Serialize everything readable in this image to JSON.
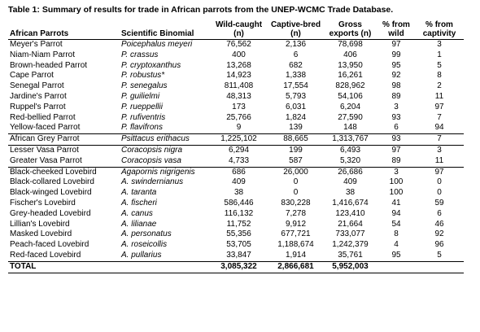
{
  "caption": "Table 1: Summary of results for trade in African parrots from the UNEP-WCMC Trade Database.",
  "headers": {
    "common": "African Parrots",
    "sci": "Scientific Binomial",
    "wild": "Wild-caught (n)",
    "captive": "Captive-bred (n)",
    "gross": "Gross exports (n)",
    "pct_wild": "% from wild",
    "pct_captive": "% from captivity"
  },
  "rows": [
    {
      "common": "Meyer's Parrot",
      "sci": "Poicephalus meyeri",
      "wild": "76,562",
      "captive": "2,136",
      "gross": "78,698",
      "pct_wild": "97",
      "pct_captive": "3"
    },
    {
      "common": "Niam-Niam Parrot",
      "sci": "P. crassus",
      "wild": "400",
      "captive": "6",
      "gross": "406",
      "pct_wild": "99",
      "pct_captive": "1"
    },
    {
      "common": "Brown-headed Parrot",
      "sci": "P. cryptoxanthus",
      "wild": "13,268",
      "captive": "682",
      "gross": "13,950",
      "pct_wild": "95",
      "pct_captive": "5"
    },
    {
      "common": "Cape Parrot",
      "sci": "P. robustus*",
      "wild": "14,923",
      "captive": "1,338",
      "gross": "16,261",
      "pct_wild": "92",
      "pct_captive": "8"
    },
    {
      "common": "Senegal Parrot",
      "sci": "P. senegalus",
      "wild": "811,408",
      "captive": "17,554",
      "gross": "828,962",
      "pct_wild": "98",
      "pct_captive": "2"
    },
    {
      "common": "Jardine's Parrot",
      "sci": "P. guilielmi",
      "wild": "48,313",
      "captive": "5,793",
      "gross": "54,106",
      "pct_wild": "89",
      "pct_captive": "11"
    },
    {
      "common": "Ruppel's Parrot",
      "sci": "P. rueppellii",
      "wild": "173",
      "captive": "6,031",
      "gross": "6,204",
      "pct_wild": "3",
      "pct_captive": "97"
    },
    {
      "common": "Red-bellied Parrot",
      "sci": "P. rufiventris",
      "wild": "25,766",
      "captive": "1,824",
      "gross": "27,590",
      "pct_wild": "93",
      "pct_captive": "7"
    },
    {
      "common": "Yellow-faced Parrot",
      "sci": "P. flavifrons",
      "wild": "9",
      "captive": "139",
      "gross": "148",
      "pct_wild": "6",
      "pct_captive": "94"
    },
    {
      "common": "African Grey Parrot",
      "sci": "Psittacus erithacus",
      "wild": "1,225,102",
      "captive": "88,665",
      "gross": "1,313,767",
      "pct_wild": "93",
      "pct_captive": "7",
      "group_start": true
    },
    {
      "common": "Lesser Vasa Parrot",
      "sci": "Coracopsis nigra",
      "wild": "6,294",
      "captive": "199",
      "gross": "6,493",
      "pct_wild": "97",
      "pct_captive": "3",
      "group_start": true
    },
    {
      "common": "Greater Vasa Parrot",
      "sci": "Coracopsis vasa",
      "wild": "4,733",
      "captive": "587",
      "gross": "5,320",
      "pct_wild": "89",
      "pct_captive": "11"
    },
    {
      "common": "Black-cheeked Lovebird",
      "sci": "Agapornis nigrigenis",
      "wild": "686",
      "captive": "26,000",
      "gross": "26,686",
      "pct_wild": "3",
      "pct_captive": "97",
      "group_start": true
    },
    {
      "common": "Black-collared Lovebird",
      "sci": "A. swindernianus",
      "wild": "409",
      "captive": "0",
      "gross": "409",
      "pct_wild": "100",
      "pct_captive": "0"
    },
    {
      "common": "Black-winged Lovebird",
      "sci": "A. taranta",
      "wild": "38",
      "captive": "0",
      "gross": "38",
      "pct_wild": "100",
      "pct_captive": "0"
    },
    {
      "common": "Fischer's Lovebird",
      "sci": "A. fischeri",
      "wild": "586,446",
      "captive": "830,228",
      "gross": "1,416,674",
      "pct_wild": "41",
      "pct_captive": "59"
    },
    {
      "common": "Grey-headed Lovebird",
      "sci": "A. canus",
      "wild": "116,132",
      "captive": "7,278",
      "gross": "123,410",
      "pct_wild": "94",
      "pct_captive": "6"
    },
    {
      "common": "Lillian's Lovebird",
      "sci": "A. lilianae",
      "wild": "11,752",
      "captive": "9,912",
      "gross": "21,664",
      "pct_wild": "54",
      "pct_captive": "46"
    },
    {
      "common": "Masked Lovebird",
      "sci": "A. personatus",
      "wild": "55,356",
      "captive": "677,721",
      "gross": "733,077",
      "pct_wild": "8",
      "pct_captive": "92"
    },
    {
      "common": "Peach-faced Lovebird",
      "sci": "A. roseicollis",
      "wild": "53,705",
      "captive": "1,188,674",
      "gross": "1,242,379",
      "pct_wild": "4",
      "pct_captive": "96"
    },
    {
      "common": "Red-faced Lovebird",
      "sci": "A. pullarius",
      "wild": "33,847",
      "captive": "1,914",
      "gross": "35,761",
      "pct_wild": "95",
      "pct_captive": "5"
    }
  ],
  "total": {
    "label": "TOTAL",
    "wild": "3,085,322",
    "captive": "2,866,681",
    "gross": "5,952,003"
  }
}
